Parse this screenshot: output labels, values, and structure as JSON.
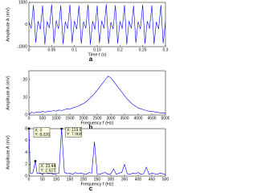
{
  "chart_data": [
    {
      "type": "line",
      "panel_label": "a",
      "xlabel": "Time t (s)",
      "ylabel": "Amplitude A (mV)",
      "color": "#0000ff",
      "x": [
        0,
        0.005,
        0.01,
        0.015,
        0.02,
        0.025,
        0.03,
        0.035,
        0.04,
        0.045,
        0.05,
        0.055,
        0.06,
        0.065,
        0.07,
        0.075,
        0.08,
        0.085,
        0.09,
        0.095,
        0.1,
        0.105,
        0.11,
        0.115,
        0.12,
        0.125,
        0.13,
        0.135,
        0.14,
        0.145,
        0.15,
        0.155,
        0.16,
        0.165,
        0.17,
        0.175,
        0.18,
        0.185,
        0.19,
        0.195,
        0.2,
        0.205,
        0.21,
        0.215,
        0.22,
        0.225,
        0.23,
        0.235,
        0.24,
        0.245,
        0.25,
        0.255,
        0.26,
        0.265,
        0.27,
        0.275,
        0.28,
        0.285,
        0.29,
        0.295,
        0.3
      ],
      "values": [
        120,
        -180,
        880,
        -820,
        150,
        -220,
        860,
        -900,
        140,
        -160,
        910,
        -850,
        180,
        -200,
        870,
        -880,
        120,
        -190,
        900,
        -830,
        160,
        -210,
        850,
        -870,
        130,
        -170,
        890,
        -910,
        150,
        -220,
        860,
        -840,
        170,
        -180,
        920,
        -880,
        110,
        -200,
        870,
        -860,
        140,
        -190,
        880,
        -900,
        160,
        -170,
        850,
        -830,
        130,
        -210,
        900,
        -870,
        150,
        -180,
        860,
        -890,
        120,
        -200,
        880,
        -850,
        140
      ],
      "xlim": [
        0,
        0.3
      ],
      "xticks": [
        0,
        0.05,
        0.1,
        0.15,
        0.2,
        0.25,
        0.3
      ],
      "ylim": [
        -1000,
        1000
      ],
      "yticks": [
        -1000,
        0,
        1000
      ]
    },
    {
      "type": "line",
      "panel_label": "b",
      "xlabel": "Frequency f (Hz)",
      "ylabel": "Amplitude A (mV)",
      "color": "#0000ff",
      "x": [
        0,
        100,
        200,
        300,
        400,
        500,
        600,
        700,
        800,
        900,
        1000,
        1100,
        1200,
        1300,
        1400,
        1500,
        1600,
        1700,
        1800,
        1900,
        2000,
        2100,
        2200,
        2300,
        2400,
        2500,
        2600,
        2700,
        2800,
        2900,
        3000,
        3100,
        3200,
        3300,
        3400,
        3500,
        3600,
        3700,
        3800,
        3900,
        4000,
        4100,
        4200,
        4300,
        4400,
        4500,
        4600,
        4700,
        4800,
        4900,
        5000
      ],
      "values": [
        0.5,
        1.5,
        1.2,
        1.8,
        1.4,
        2,
        1.6,
        2.2,
        2,
        2.5,
        2.2,
        2.8,
        2.5,
        3,
        3.5,
        3.2,
        4,
        4.5,
        5,
        5.8,
        6.5,
        7.5,
        9,
        10.5,
        12,
        14,
        16,
        18,
        20,
        22,
        21,
        19,
        17,
        15,
        13,
        11,
        9,
        7.5,
        6,
        5,
        4,
        3.5,
        3,
        2.5,
        2.2,
        2,
        1.8,
        1.5,
        1.3,
        1.2,
        1
      ],
      "xlim": [
        0,
        5000
      ],
      "xticks": [
        0,
        500,
        1000,
        1500,
        2000,
        2500,
        3000,
        3500,
        4000,
        4500,
        5000
      ],
      "ylim": [
        0,
        25
      ],
      "yticks": [
        0,
        10,
        20
      ]
    },
    {
      "type": "line",
      "panel_label": "c",
      "xlabel": "Frequency f (Hz)",
      "ylabel": "Amplitude A (mV)",
      "color": "#0000ff",
      "x": [
        0,
        5,
        10,
        15,
        23.44,
        30,
        40,
        50,
        60,
        70,
        80,
        90,
        100,
        110,
        119.6,
        130,
        140,
        150,
        160,
        170,
        180,
        190,
        200,
        210,
        220,
        230,
        240,
        250,
        260,
        270,
        280,
        290,
        300,
        310,
        320,
        330,
        340,
        350,
        360,
        370,
        380,
        390,
        400,
        410,
        420,
        430,
        440,
        450,
        460,
        470,
        480,
        490,
        500
      ],
      "values": [
        8.026,
        0.5,
        0.4,
        0.6,
        2.527,
        0.4,
        0.5,
        0.3,
        0.6,
        0.4,
        0.5,
        0.3,
        0.4,
        0.5,
        7.969,
        0.6,
        0.4,
        0.5,
        0.3,
        0.6,
        0.4,
        0.5,
        0.4,
        0.3,
        0.6,
        0.5,
        5.8,
        0.4,
        0.3,
        0.5,
        0.6,
        0.3,
        0.4,
        1.2,
        0.3,
        0.5,
        0.6,
        2.0,
        0.4,
        0.3,
        0.5,
        0.4,
        0.6,
        0.3,
        0.4,
        1.5,
        0.3,
        0.5,
        0.4,
        0.3,
        0.5,
        0.4,
        0.3
      ],
      "xlim": [
        0,
        500
      ],
      "xticks": [
        0,
        50,
        100,
        150,
        200,
        250,
        300,
        350,
        400,
        450,
        500
      ],
      "ylim": [
        0,
        8
      ],
      "yticks": [
        0,
        2,
        4,
        6,
        8
      ],
      "annotations": [
        {
          "x": 0,
          "y": 8.026,
          "lines": [
            "X: 0",
            "Y: 8.026"
          ]
        },
        {
          "x": 23.44,
          "y": 2.527,
          "lines": [
            "X: 23.44",
            "Y: 2.527"
          ]
        },
        {
          "x": 119.6,
          "y": 7.969,
          "lines": [
            "X: 119.6",
            "Y: 7.969"
          ]
        }
      ]
    }
  ]
}
